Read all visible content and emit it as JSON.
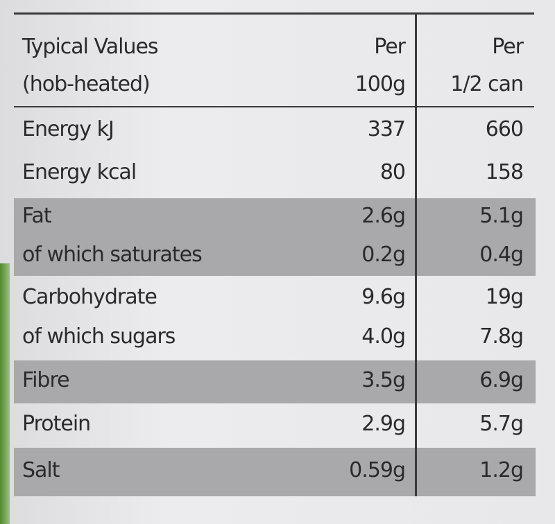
{
  "table": {
    "header": [
      [
        "Typical Values",
        "(hob-heated)"
      ],
      [
        "Per",
        "100g"
      ],
      [
        "Per",
        "1/2 can"
      ]
    ],
    "groups": [
      {
        "shaded": false,
        "rows": [
          [
            "Energy kJ",
            "337",
            "660"
          ],
          [
            "Energy kcal",
            "80",
            "158"
          ]
        ]
      },
      {
        "shaded": true,
        "rows": [
          [
            "Fat",
            "2.6g",
            "5.1g"
          ],
          [
            "of which saturates",
            "0.2g",
            "0.4g"
          ]
        ]
      },
      {
        "shaded": false,
        "rows": [
          [
            "Carbohydrate",
            "9.6g",
            "19g"
          ],
          [
            "of which sugars",
            "4.0g",
            "7.8g"
          ]
        ]
      },
      {
        "shaded": true,
        "rows": [
          [
            "Fibre",
            "3.5g",
            "6.9g"
          ]
        ]
      },
      {
        "shaded": false,
        "rows": [
          [
            "Protein",
            "2.9g",
            "5.7g"
          ]
        ]
      },
      {
        "shaded": true,
        "rows": [
          [
            "Salt",
            "0.59g",
            "1.2g"
          ]
        ]
      }
    ]
  }
}
